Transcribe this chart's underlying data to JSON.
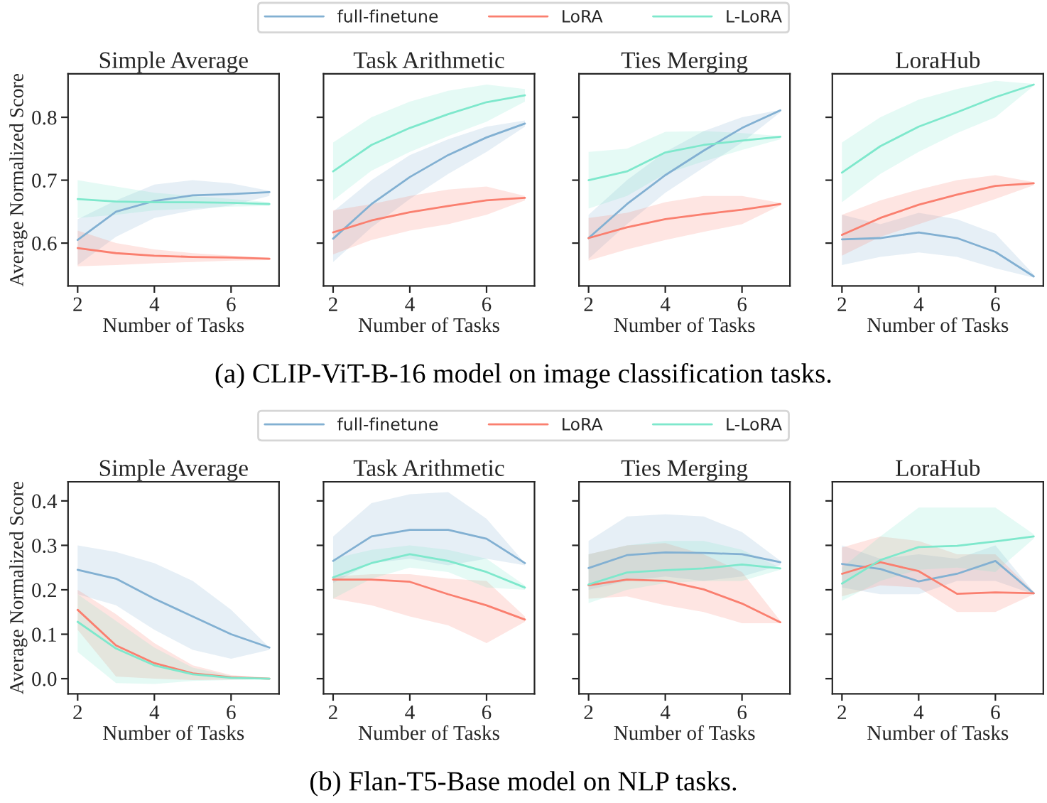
{
  "chart_data": [
    {
      "type": "line",
      "title": "Simple Average",
      "xlabel": "Number of Tasks",
      "ylabel": "Average Normalized Score",
      "x": [
        2,
        3,
        4,
        5,
        6,
        7
      ],
      "xlim": [
        1.75,
        7.25
      ],
      "xticks": [
        2,
        4,
        6
      ],
      "ylim": [
        0.532,
        0.869
      ],
      "yticks": [
        0.6,
        0.7,
        0.8
      ],
      "legend": "top",
      "annotations": [
        "(a) CLIP-ViT-B-16 model on image classification tasks."
      ],
      "series": [
        {
          "name": "full-finetune",
          "color": "#82b0d2",
          "values": [
            0.605,
            0.65,
            0.667,
            0.676,
            0.678,
            0.681
          ],
          "upper": [
            0.638,
            0.668,
            0.693,
            0.7,
            0.695,
            0.683
          ],
          "lower": [
            0.565,
            0.61,
            0.64,
            0.652,
            0.66,
            0.675
          ]
        },
        {
          "name": "LoRA",
          "color": "#fa7f6f",
          "values": [
            0.592,
            0.584,
            0.58,
            0.578,
            0.577,
            0.575
          ],
          "upper": [
            0.62,
            0.6,
            0.59,
            0.584,
            0.58,
            0.577
          ],
          "lower": [
            0.563,
            0.565,
            0.568,
            0.57,
            0.572,
            0.573
          ]
        },
        {
          "name": "L-LoRA",
          "color": "#7ee8cc",
          "values": [
            0.67,
            0.666,
            0.665,
            0.665,
            0.664,
            0.662
          ],
          "upper": [
            0.7,
            0.69,
            0.68,
            0.675,
            0.67,
            0.665
          ],
          "lower": [
            0.64,
            0.645,
            0.652,
            0.655,
            0.658,
            0.659
          ]
        }
      ]
    },
    {
      "type": "line",
      "title": "Task Arithmetic",
      "xlabel": "Number of Tasks",
      "x": [
        2,
        3,
        4,
        5,
        6,
        7
      ],
      "xlim": [
        1.75,
        7.25
      ],
      "xticks": [
        2,
        4,
        6
      ],
      "ylim": [
        0.532,
        0.869
      ],
      "yticks": [
        0.6,
        0.7,
        0.8
      ],
      "tick_labels": "x",
      "series": [
        {
          "color": "#82b0d2",
          "values": [
            0.607,
            0.662,
            0.705,
            0.74,
            0.768,
            0.79
          ],
          "upper": [
            0.65,
            0.7,
            0.74,
            0.765,
            0.785,
            0.795
          ],
          "lower": [
            0.57,
            0.625,
            0.67,
            0.71,
            0.745,
            0.785
          ]
        },
        {
          "color": "#fa7f6f",
          "values": [
            0.617,
            0.636,
            0.649,
            0.659,
            0.668,
            0.672
          ],
          "upper": [
            0.652,
            0.662,
            0.675,
            0.685,
            0.69,
            0.675
          ],
          "lower": [
            0.582,
            0.605,
            0.62,
            0.63,
            0.645,
            0.668
          ]
        },
        {
          "color": "#7ee8cc",
          "values": [
            0.714,
            0.756,
            0.783,
            0.805,
            0.824,
            0.835
          ],
          "upper": [
            0.76,
            0.8,
            0.825,
            0.842,
            0.852,
            0.845
          ],
          "lower": [
            0.668,
            0.715,
            0.745,
            0.77,
            0.793,
            0.825
          ]
        }
      ]
    },
    {
      "type": "line",
      "title": "Ties Merging",
      "xlabel": "Number of Tasks",
      "x": [
        2,
        3,
        4,
        5,
        6,
        7
      ],
      "xlim": [
        1.75,
        7.25
      ],
      "xticks": [
        2,
        4,
        6
      ],
      "ylim": [
        0.532,
        0.869
      ],
      "yticks": [
        0.6,
        0.7,
        0.8
      ],
      "tick_labels": "x",
      "series": [
        {
          "color": "#82b0d2",
          "values": [
            0.608,
            0.662,
            0.708,
            0.747,
            0.783,
            0.811
          ],
          "upper": [
            0.645,
            0.7,
            0.745,
            0.778,
            0.8,
            0.812
          ],
          "lower": [
            0.575,
            0.63,
            0.68,
            0.72,
            0.76,
            0.808
          ]
        },
        {
          "color": "#fa7f6f",
          "values": [
            0.608,
            0.625,
            0.638,
            0.646,
            0.653,
            0.662
          ],
          "upper": [
            0.64,
            0.648,
            0.665,
            0.675,
            0.675,
            0.664
          ],
          "lower": [
            0.572,
            0.59,
            0.605,
            0.618,
            0.63,
            0.66
          ]
        },
        {
          "color": "#7ee8cc",
          "values": [
            0.7,
            0.714,
            0.744,
            0.756,
            0.763,
            0.769
          ],
          "upper": [
            0.745,
            0.75,
            0.777,
            0.778,
            0.775,
            0.77
          ],
          "lower": [
            0.655,
            0.675,
            0.71,
            0.73,
            0.748,
            0.765
          ]
        }
      ]
    },
    {
      "type": "line",
      "title": "LoraHub",
      "xlabel": "Number of Tasks",
      "x": [
        2,
        3,
        4,
        5,
        6,
        7
      ],
      "xlim": [
        1.75,
        7.25
      ],
      "xticks": [
        2,
        4,
        6
      ],
      "ylim": [
        0.532,
        0.869
      ],
      "yticks": [
        0.6,
        0.7,
        0.8
      ],
      "tick_labels": "x",
      "series": [
        {
          "color": "#82b0d2",
          "values": [
            0.606,
            0.608,
            0.617,
            0.608,
            0.586,
            0.547
          ],
          "upper": [
            0.645,
            0.63,
            0.648,
            0.638,
            0.615,
            0.55
          ],
          "lower": [
            0.565,
            0.578,
            0.585,
            0.578,
            0.56,
            0.545
          ]
        },
        {
          "color": "#fa7f6f",
          "values": [
            0.613,
            0.64,
            0.661,
            0.677,
            0.691,
            0.695
          ],
          "upper": [
            0.645,
            0.668,
            0.685,
            0.7,
            0.708,
            0.697
          ],
          "lower": [
            0.58,
            0.61,
            0.63,
            0.65,
            0.67,
            0.692
          ]
        },
        {
          "color": "#7ee8cc",
          "values": [
            0.712,
            0.754,
            0.785,
            0.808,
            0.832,
            0.852
          ],
          "upper": [
            0.76,
            0.8,
            0.828,
            0.845,
            0.858,
            0.853
          ],
          "lower": [
            0.665,
            0.71,
            0.745,
            0.775,
            0.8,
            0.85
          ]
        }
      ]
    },
    {
      "type": "line",
      "title": "Simple Average",
      "xlabel": "Number of Tasks",
      "ylabel": "Average Normalized Score",
      "x": [
        2,
        3,
        4,
        5,
        6,
        7
      ],
      "xlim": [
        1.75,
        7.25
      ],
      "xticks": [
        2,
        4,
        6
      ],
      "ylim": [
        -0.034,
        0.443
      ],
      "yticks": [
        {
          "value": 0,
          "label": "0.0"
        },
        0.1,
        0.2,
        0.3,
        0.4
      ],
      "legend": "top",
      "annotations": [
        "(b) Flan-T5-Base model on NLP tasks."
      ],
      "series": [
        {
          "name": "full-finetune",
          "color": "#82b0d2",
          "values": [
            0.245,
            0.225,
            0.18,
            0.14,
            0.1,
            0.07
          ],
          "upper": [
            0.3,
            0.285,
            0.26,
            0.22,
            0.155,
            0.07
          ],
          "lower": [
            0.19,
            0.165,
            0.11,
            0.065,
            0.045,
            0.065
          ]
        },
        {
          "name": "LoRA",
          "color": "#fa7f6f",
          "values": [
            0.155,
            0.075,
            0.035,
            0.012,
            0.003,
            0.0
          ],
          "upper": [
            0.2,
            0.145,
            0.08,
            0.03,
            0.008,
            0.002
          ],
          "lower": [
            0.11,
            0.005,
            0.0,
            -0.003,
            -0.002,
            -0.001
          ]
        },
        {
          "name": "L-LoRA",
          "color": "#7ee8cc",
          "values": [
            0.128,
            0.068,
            0.03,
            0.01,
            0.002,
            0.0
          ],
          "upper": [
            0.19,
            0.13,
            0.07,
            0.025,
            0.006,
            0.002
          ],
          "lower": [
            0.06,
            -0.01,
            -0.012,
            -0.005,
            -0.003,
            -0.001
          ]
        }
      ]
    },
    {
      "type": "line",
      "title": "Task Arithmetic",
      "xlabel": "Number of Tasks",
      "x": [
        2,
        3,
        4,
        5,
        6,
        7
      ],
      "xlim": [
        1.75,
        7.25
      ],
      "xticks": [
        2,
        4,
        6
      ],
      "ylim": [
        -0.034,
        0.443
      ],
      "yticks": [
        0.0,
        0.1,
        0.2,
        0.3,
        0.4
      ],
      "tick_labels": "x",
      "series": [
        {
          "color": "#82b0d2",
          "values": [
            0.265,
            0.32,
            0.335,
            0.335,
            0.315,
            0.26
          ],
          "upper": [
            0.32,
            0.395,
            0.415,
            0.42,
            0.36,
            0.26
          ],
          "lower": [
            0.215,
            0.26,
            0.27,
            0.255,
            0.27,
            0.255
          ]
        },
        {
          "color": "#fa7f6f",
          "values": [
            0.223,
            0.223,
            0.218,
            0.19,
            0.165,
            0.133
          ],
          "upper": [
            0.23,
            0.235,
            0.235,
            0.225,
            0.22,
            0.14
          ],
          "lower": [
            0.18,
            0.165,
            0.14,
            0.12,
            0.08,
            0.128
          ]
        },
        {
          "color": "#7ee8cc",
          "values": [
            0.228,
            0.26,
            0.28,
            0.265,
            0.24,
            0.205
          ],
          "upper": [
            0.27,
            0.29,
            0.3,
            0.29,
            0.27,
            0.21
          ],
          "lower": [
            0.18,
            0.225,
            0.25,
            0.24,
            0.205,
            0.2
          ]
        }
      ]
    },
    {
      "type": "line",
      "title": "Ties Merging",
      "xlabel": "Number of Tasks",
      "x": [
        2,
        3,
        4,
        5,
        6,
        7
      ],
      "xlim": [
        1.75,
        7.25
      ],
      "xticks": [
        2,
        4,
        6
      ],
      "ylim": [
        -0.034,
        0.443
      ],
      "yticks": [
        0.0,
        0.1,
        0.2,
        0.3,
        0.4
      ],
      "tick_labels": "x",
      "series": [
        {
          "color": "#82b0d2",
          "values": [
            0.249,
            0.278,
            0.284,
            0.283,
            0.28,
            0.262
          ],
          "upper": [
            0.31,
            0.365,
            0.37,
            0.365,
            0.33,
            0.265
          ],
          "lower": [
            0.2,
            0.22,
            0.23,
            0.22,
            0.23,
            0.255
          ]
        },
        {
          "color": "#fa7f6f",
          "values": [
            0.21,
            0.223,
            0.22,
            0.201,
            0.169,
            0.127
          ],
          "upper": [
            0.28,
            0.3,
            0.305,
            0.28,
            0.24,
            0.13
          ],
          "lower": [
            0.18,
            0.185,
            0.165,
            0.15,
            0.125,
            0.125
          ]
        },
        {
          "color": "#7ee8cc",
          "values": [
            0.212,
            0.239,
            0.244,
            0.248,
            0.257,
            0.248
          ],
          "upper": [
            0.28,
            0.3,
            0.31,
            0.31,
            0.29,
            0.25
          ],
          "lower": [
            0.17,
            0.2,
            0.215,
            0.22,
            0.22,
            0.245
          ]
        }
      ]
    },
    {
      "type": "line",
      "title": "LoraHub",
      "xlabel": "Number of Tasks",
      "x": [
        2,
        3,
        4,
        5,
        6,
        7
      ],
      "xlim": [
        1.75,
        7.25
      ],
      "xticks": [
        2,
        4,
        6
      ],
      "ylim": [
        -0.034,
        0.443
      ],
      "yticks": [
        0.0,
        0.1,
        0.2,
        0.3,
        0.4
      ],
      "tick_labels": "x",
      "series": [
        {
          "color": "#82b0d2",
          "values": [
            0.258,
            0.247,
            0.219,
            0.236,
            0.265,
            0.192
          ],
          "upper": [
            0.3,
            0.27,
            0.28,
            0.27,
            0.3,
            0.195
          ],
          "lower": [
            0.205,
            0.19,
            0.19,
            0.22,
            0.22,
            0.19
          ]
        },
        {
          "color": "#fa7f6f",
          "values": [
            0.236,
            0.262,
            0.242,
            0.191,
            0.194,
            0.192
          ],
          "upper": [
            0.295,
            0.32,
            0.31,
            0.28,
            0.28,
            0.195
          ],
          "lower": [
            0.185,
            0.21,
            0.205,
            0.15,
            0.15,
            0.19
          ]
        },
        {
          "color": "#7ee8cc",
          "values": [
            0.214,
            0.267,
            0.296,
            0.299,
            0.309,
            0.32
          ],
          "upper": [
            0.25,
            0.32,
            0.385,
            0.385,
            0.385,
            0.325
          ],
          "lower": [
            0.175,
            0.22,
            0.245,
            0.25,
            0.24,
            0.315
          ]
        }
      ]
    }
  ]
}
